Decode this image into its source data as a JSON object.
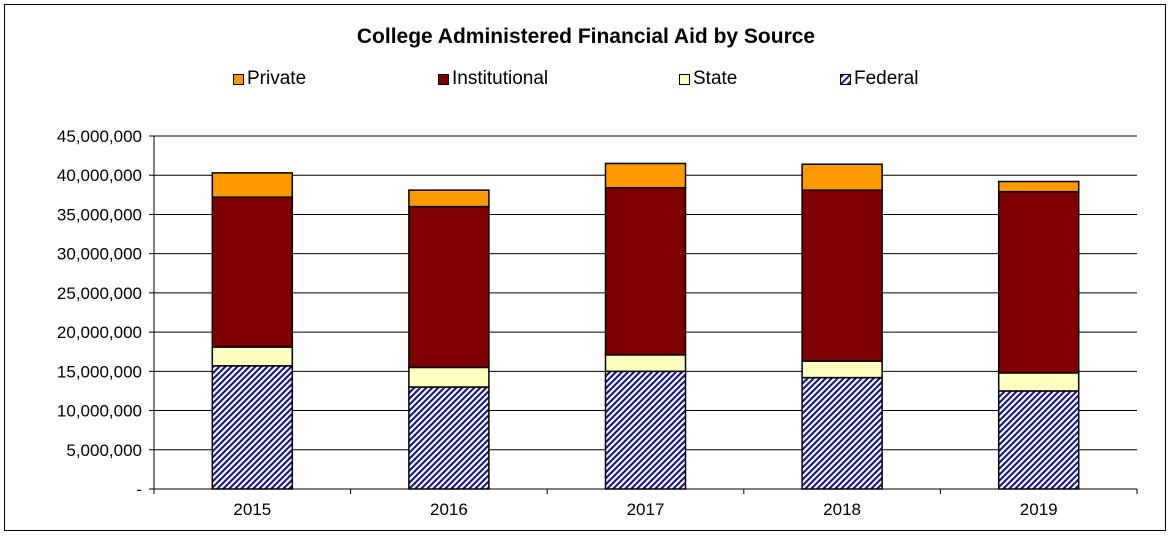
{
  "chart_data": {
    "type": "bar",
    "stacked": true,
    "title": "College Administered Financial Aid by Source",
    "categories": [
      "2015",
      "2016",
      "2017",
      "2018",
      "2019"
    ],
    "ylim": [
      0,
      45000000
    ],
    "yticks": [
      0,
      5000000,
      10000000,
      15000000,
      20000000,
      25000000,
      30000000,
      35000000,
      40000000,
      45000000
    ],
    "ytick_labels": [
      "-",
      "5,000,000",
      "10,000,000",
      "15,000,000",
      "20,000,000",
      "25,000,000",
      "30,000,000",
      "35,000,000",
      "40,000,000",
      "45,000,000"
    ],
    "grid": true,
    "legend_position": "top",
    "series": [
      {
        "name": "Federal",
        "color": "#1a1a8c",
        "pattern": "diagonal-hatch",
        "values": [
          15700000,
          13000000,
          15000000,
          14200000,
          12500000
        ]
      },
      {
        "name": "State",
        "color": "#ffffc0",
        "values": [
          2400000,
          2500000,
          2100000,
          2100000,
          2300000
        ]
      },
      {
        "name": "Institutional",
        "color": "#800000",
        "values": [
          19100000,
          20500000,
          21300000,
          21800000,
          23100000
        ]
      },
      {
        "name": "Private",
        "color": "#ff9900",
        "values": [
          3100000,
          2100000,
          3100000,
          3300000,
          1300000
        ]
      }
    ],
    "legend_order": [
      "Private",
      "Institutional",
      "State",
      "Federal"
    ]
  }
}
